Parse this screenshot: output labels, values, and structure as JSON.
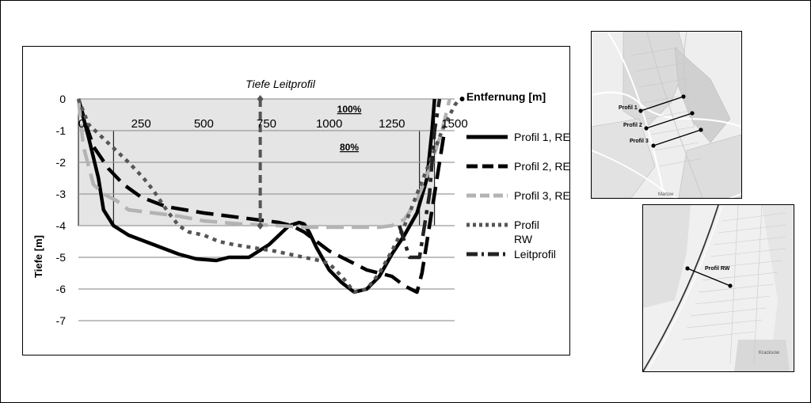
{
  "chart_data": {
    "type": "line",
    "title": "Tiefe Leitprofil",
    "xlabel": "Entfernung [m]",
    "ylabel": "Tiefe [m]",
    "xlim": [
      0,
      1500
    ],
    "ylim": [
      -7,
      0
    ],
    "x_ticks": [
      "0",
      "250",
      "500",
      "750",
      "1000",
      "1250",
      "1500"
    ],
    "y_ticks": [
      "0",
      "-1",
      "-2",
      "-3",
      "-4",
      "-5",
      "-6",
      "-7"
    ],
    "grid": true,
    "legend_position": "right",
    "regions": [
      {
        "label": "100%",
        "x": [
          0,
          1420
        ],
        "y": [
          -4,
          0
        ]
      },
      {
        "label": "80%",
        "x": [
          140,
          1360
        ],
        "y": [
          -4,
          -1
        ]
      }
    ],
    "series": [
      {
        "name": "Profil 1, RE",
        "color": "#000000",
        "style": "solid",
        "x": [
          0,
          40,
          80,
          100,
          140,
          200,
          300,
          400,
          470,
          550,
          600,
          630,
          680,
          720,
          760,
          800,
          840,
          880,
          900,
          920,
          950,
          1000,
          1050,
          1100,
          1150,
          1200,
          1250,
          1300,
          1350,
          1390,
          1410,
          1420
        ],
        "y": [
          0,
          -1.2,
          -2.5,
          -3.5,
          -4.0,
          -4.3,
          -4.6,
          -4.9,
          -5.05,
          -5.1,
          -5.0,
          -5.0,
          -5.0,
          -4.8,
          -4.6,
          -4.3,
          -4.0,
          -3.9,
          -3.95,
          -4.2,
          -4.7,
          -5.4,
          -5.8,
          -6.1,
          -6.0,
          -5.6,
          -4.9,
          -4.3,
          -3.6,
          -2.5,
          -1.0,
          0
        ]
      },
      {
        "name": "Profil 2, RE",
        "color": "#000000",
        "style": "dashed",
        "x": [
          0,
          30,
          60,
          120,
          180,
          250,
          350,
          500,
          650,
          750,
          800,
          850,
          900,
          950,
          1000,
          1050,
          1100,
          1150,
          1200,
          1250,
          1300,
          1350,
          1370,
          1400,
          1430,
          1460
        ],
        "y": [
          0,
          -0.8,
          -1.5,
          -2.2,
          -2.7,
          -3.1,
          -3.4,
          -3.6,
          -3.75,
          -3.85,
          -3.9,
          -4.0,
          -4.2,
          -4.5,
          -4.8,
          -5.0,
          -5.2,
          -5.4,
          -5.5,
          -5.6,
          -5.9,
          -6.1,
          -5.5,
          -4.0,
          -2.5,
          -1.0
        ]
      },
      {
        "name": "Profil 3, RE",
        "color": "#b3b3b3",
        "style": "dashed",
        "x": [
          0,
          20,
          60,
          100,
          150,
          200,
          300,
          400,
          500,
          650,
          800,
          900,
          1000,
          1100,
          1200,
          1250,
          1300,
          1350,
          1400,
          1450,
          1480
        ],
        "y": [
          0,
          -1.5,
          -2.7,
          -3.0,
          -3.2,
          -3.5,
          -3.6,
          -3.7,
          -3.85,
          -3.95,
          -4.0,
          -4.05,
          -4.05,
          -4.05,
          -4.05,
          -4.0,
          -3.8,
          -3.2,
          -2.2,
          -1.0,
          0
        ]
      },
      {
        "name": "Profil RW",
        "color": "#555555",
        "style": "dotted",
        "x": [
          0,
          40,
          120,
          200,
          260,
          300,
          360,
          400,
          440,
          500,
          560,
          620,
          700,
          780,
          840,
          900,
          960,
          1000,
          1050,
          1100,
          1150,
          1200,
          1250,
          1300,
          1350,
          1400,
          1450,
          1500,
          1520
        ],
        "y": [
          0,
          -0.8,
          -1.4,
          -2.0,
          -2.5,
          -2.9,
          -3.6,
          -4.0,
          -4.2,
          -4.3,
          -4.5,
          -4.6,
          -4.7,
          -4.8,
          -4.9,
          -5.0,
          -5.1,
          -5.2,
          -5.6,
          -6.1,
          -6.0,
          -5.5,
          -4.8,
          -4.0,
          -3.0,
          -2.0,
          -1.0,
          -0.2,
          0
        ]
      },
      {
        "name": "Leitprofil",
        "color": "#222222",
        "style": "dashdot",
        "x": [
          1280,
          1320,
          1360,
          1400,
          1420,
          1440
        ],
        "y": [
          -4.0,
          -5.0,
          -5.0,
          -3.0,
          -1.0,
          0
        ]
      },
      {
        "name": "Leitlinie",
        "color": "#555555",
        "style": "dashed-vertical",
        "x": [
          725,
          725
        ],
        "y": [
          0,
          -4.0
        ]
      }
    ]
  },
  "legend_items": [
    {
      "label": "Profil 1, RE",
      "color": "#000000",
      "dash": ""
    },
    {
      "label": "Profil 2, RE",
      "color": "#000000",
      "dash": "14 6"
    },
    {
      "label": "Profil 3, RE",
      "color": "#b3b3b3",
      "dash": "12 5"
    },
    {
      "label": "Profil\nRW",
      "color": "#555555",
      "dash": "4 4"
    },
    {
      "label": "Leitprofil",
      "color": "#222222",
      "dash": "14 5 3 5"
    }
  ],
  "maps": {
    "top": {
      "profile_labels": [
        "Profil 1",
        "Profil 2",
        "Profil 3"
      ],
      "place_labels": [
        "Marlow"
      ]
    },
    "bottom": {
      "profile_labels": [
        "Profil RW"
      ],
      "place_labels": [
        "Kracksow"
      ]
    }
  }
}
